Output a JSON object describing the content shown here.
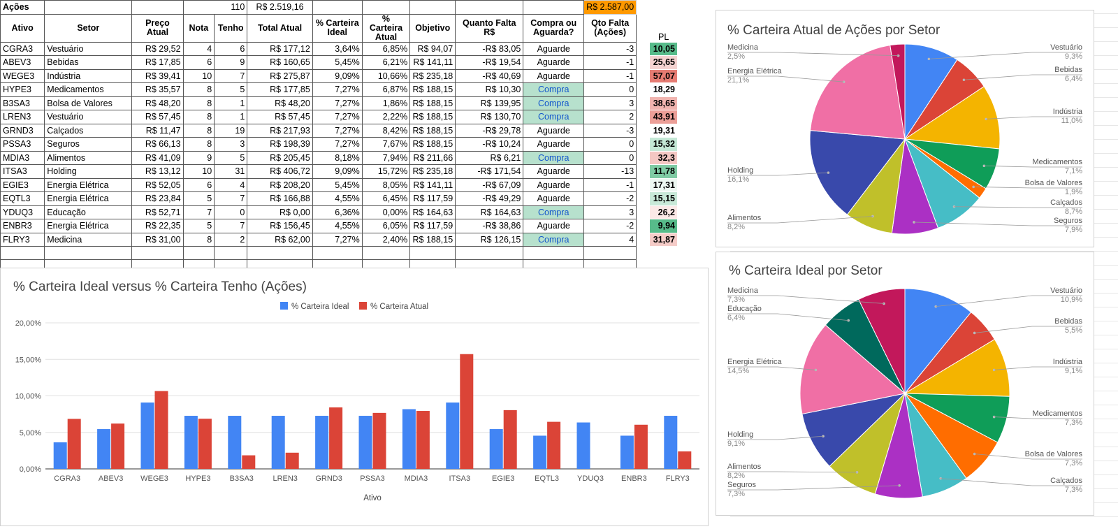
{
  "sheet": {
    "summary": {
      "label": "Ações",
      "nota_total": "110",
      "total_atual": "R$ 2.519,16",
      "falta_total": "R$ 2.587,00"
    },
    "headers": [
      "Ativo",
      "Setor",
      "Preço Atual",
      "Nota",
      "Tenho",
      "Total Atual",
      "% Carteira Ideal",
      "% Carteira Atual",
      "Objetivo",
      "Quanto Falta R$",
      "Compra ou Aguarda?",
      "Qto Falta (Ações)",
      "PL"
    ],
    "rows": [
      {
        "ativo": "CGRA3",
        "setor": "Vestuário",
        "preco": "R$ 29,52",
        "nota": "4",
        "tenho": "6",
        "total": "R$ 177,12",
        "ideal": "3,64%",
        "atual": "6,85%",
        "objetivo": "R$ 94,07",
        "falta": "-R$ 83,05",
        "acao": "Aguarde",
        "qto": "-3",
        "pl": "10,05",
        "pl_color": "#57bb8a"
      },
      {
        "ativo": "ABEV3",
        "setor": "Bebidas",
        "preco": "R$ 17,85",
        "nota": "6",
        "tenho": "9",
        "total": "R$ 160,65",
        "ideal": "5,45%",
        "atual": "6,21%",
        "objetivo": "R$ 141,11",
        "falta": "-R$ 19,54",
        "acao": "Aguarde",
        "qto": "-1",
        "pl": "25,65",
        "pl_color": "#f4d3d1"
      },
      {
        "ativo": "WEGE3",
        "setor": "Indústria",
        "preco": "R$ 39,41",
        "nota": "10",
        "tenho": "7",
        "total": "R$ 275,87",
        "ideal": "9,09%",
        "atual": "10,66%",
        "objetivo": "R$ 235,18",
        "falta": "-R$ 40,69",
        "acao": "Aguarde",
        "qto": "-1",
        "pl": "57,07",
        "pl_color": "#e67c73"
      },
      {
        "ativo": "HYPE3",
        "setor": "Medicamentos",
        "preco": "R$ 35,57",
        "nota": "8",
        "tenho": "5",
        "total": "R$ 177,85",
        "ideal": "7,27%",
        "atual": "6,87%",
        "objetivo": "R$ 188,15",
        "falta": "R$ 10,30",
        "acao": "Compra",
        "qto": "0",
        "pl": "18,29",
        "pl_color": "#ffffff"
      },
      {
        "ativo": "B3SA3",
        "setor": "Bolsa de Valores",
        "preco": "R$ 48,20",
        "nota": "8",
        "tenho": "1",
        "total": "R$ 48,20",
        "ideal": "7,27%",
        "atual": "1,86%",
        "objetivo": "R$ 188,15",
        "falta": "R$ 139,95",
        "acao": "Compra",
        "qto": "3",
        "pl": "38,65",
        "pl_color": "#f0b4af"
      },
      {
        "ativo": "LREN3",
        "setor": "Vestuário",
        "preco": "R$ 57,45",
        "nota": "8",
        "tenho": "1",
        "total": "R$ 57,45",
        "ideal": "7,27%",
        "atual": "2,22%",
        "objetivo": "R$ 188,15",
        "falta": "R$ 130,70",
        "acao": "Compra",
        "qto": "2",
        "pl": "43,91",
        "pl_color": "#ec9f98"
      },
      {
        "ativo": "GRND3",
        "setor": "Calçados",
        "preco": "R$ 11,47",
        "nota": "8",
        "tenho": "19",
        "total": "R$ 217,93",
        "ideal": "7,27%",
        "atual": "8,42%",
        "objetivo": "R$ 188,15",
        "falta": "-R$ 29,78",
        "acao": "Aguarde",
        "qto": "-3",
        "pl": "19,31",
        "pl_color": "#ffffff"
      },
      {
        "ativo": "PSSA3",
        "setor": "Seguros",
        "preco": "R$ 66,13",
        "nota": "8",
        "tenho": "3",
        "total": "R$ 198,39",
        "ideal": "7,27%",
        "atual": "7,67%",
        "objetivo": "R$ 188,15",
        "falta": "-R$ 10,24",
        "acao": "Aguarde",
        "qto": "0",
        "pl": "15,32",
        "pl_color": "#c5e8d6"
      },
      {
        "ativo": "MDIA3",
        "setor": "Alimentos",
        "preco": "R$ 41,09",
        "nota": "9",
        "tenho": "5",
        "total": "R$ 205,45",
        "ideal": "8,18%",
        "atual": "7,94%",
        "objetivo": "R$ 211,66",
        "falta": "R$ 6,21",
        "acao": "Compra",
        "qto": "0",
        "pl": "32,3",
        "pl_color": "#f4c7c3"
      },
      {
        "ativo": "ITSA3",
        "setor": "Holding",
        "preco": "R$ 13,12",
        "nota": "10",
        "tenho": "31",
        "total": "R$ 406,72",
        "ideal": "9,09%",
        "atual": "15,72%",
        "objetivo": "R$ 235,18",
        "falta": "-R$ 171,54",
        "acao": "Aguarde",
        "qto": "-13",
        "pl": "11,78",
        "pl_color": "#7fcba4"
      },
      {
        "ativo": "EGIE3",
        "setor": "Energia Elétrica",
        "preco": "R$ 52,05",
        "nota": "6",
        "tenho": "4",
        "total": "R$ 208,20",
        "ideal": "5,45%",
        "atual": "8,05%",
        "objetivo": "R$ 141,11",
        "falta": "-R$ 67,09",
        "acao": "Aguarde",
        "qto": "-1",
        "pl": "17,31",
        "pl_color": "#edf8f2"
      },
      {
        "ativo": "EQTL3",
        "setor": "Energia Elétrica",
        "preco": "R$ 23,84",
        "nota": "5",
        "tenho": "7",
        "total": "R$ 166,88",
        "ideal": "4,55%",
        "atual": "6,45%",
        "objetivo": "R$ 117,59",
        "falta": "-R$ 49,29",
        "acao": "Aguarde",
        "qto": "-2",
        "pl": "15,15",
        "pl_color": "#c8e9d8"
      },
      {
        "ativo": "YDUQ3",
        "setor": "Educação",
        "preco": "R$ 52,71",
        "nota": "7",
        "tenho": "0",
        "total": "R$ 0,00",
        "ideal": "6,36%",
        "atual": "0,00%",
        "objetivo": "R$ 164,63",
        "falta": "R$ 164,63",
        "acao": "Compra",
        "qto": "3",
        "pl": "26,2",
        "pl_color": "#fbe9e7"
      },
      {
        "ativo": "ENBR3",
        "setor": "Energia Elétrica",
        "preco": "R$ 22,35",
        "nota": "5",
        "tenho": "7",
        "total": "R$ 156,45",
        "ideal": "4,55%",
        "atual": "6,05%",
        "objetivo": "R$ 117,59",
        "falta": "-R$ 38,86",
        "acao": "Aguarde",
        "qto": "-2",
        "pl": "9,94",
        "pl_color": "#57bb8a"
      },
      {
        "ativo": "FLRY3",
        "setor": "Medicina",
        "preco": "R$ 31,00",
        "nota": "8",
        "tenho": "2",
        "total": "R$ 62,00",
        "ideal": "7,27%",
        "atual": "2,40%",
        "objetivo": "R$ 188,15",
        "falta": "R$ 126,15",
        "acao": "Compra",
        "qto": "4",
        "pl": "31,87",
        "pl_color": "#f5ccc8"
      }
    ]
  },
  "chart_data": [
    {
      "type": "bar",
      "title": "% Carteira Ideal versus % Carteira Tenho (Ações)",
      "xlabel": "Ativo",
      "ylabel": "",
      "ylim": [
        0,
        20
      ],
      "yticks": [
        "0,00%",
        "5,00%",
        "10,00%",
        "15,00%",
        "20,00%"
      ],
      "legend_position": "top",
      "categories": [
        "CGRA3",
        "ABEV3",
        "WEGE3",
        "HYPE3",
        "B3SA3",
        "LREN3",
        "GRND3",
        "PSSA3",
        "MDIA3",
        "ITSA3",
        "EGIE3",
        "EQTL3",
        "YDUQ3",
        "ENBR3",
        "FLRY3"
      ],
      "series": [
        {
          "name": "% Carteira Ideal",
          "color": "#4285f4",
          "values": [
            3.64,
            5.45,
            9.09,
            7.27,
            7.27,
            7.27,
            7.27,
            7.27,
            8.18,
            9.09,
            5.45,
            4.55,
            6.36,
            4.55,
            7.27
          ]
        },
        {
          "name": "% Carteira Atual",
          "color": "#db4437",
          "values": [
            6.85,
            6.21,
            10.66,
            6.87,
            1.86,
            2.22,
            8.42,
            7.67,
            7.94,
            15.72,
            8.05,
            6.45,
            0.0,
            6.05,
            2.4
          ]
        }
      ],
      "grid": true
    },
    {
      "type": "pie",
      "title": "% Carteira Atual de Ações por Setor",
      "slices": [
        {
          "label": "Vestuário",
          "value": 9.3,
          "pct": "9,3%",
          "color": "#4285f4"
        },
        {
          "label": "Bebidas",
          "value": 6.4,
          "pct": "6,4%",
          "color": "#db4437"
        },
        {
          "label": "Indústria",
          "value": 11.0,
          "pct": "11,0%",
          "color": "#f4b400"
        },
        {
          "label": "Medicamentos",
          "value": 7.1,
          "pct": "7,1%",
          "color": "#0f9d58"
        },
        {
          "label": "Bolsa de Valores",
          "value": 1.9,
          "pct": "1,9%",
          "color": "#ff6d00"
        },
        {
          "label": "Calçados",
          "value": 8.7,
          "pct": "8,7%",
          "color": "#46bdc6"
        },
        {
          "label": "Seguros",
          "value": 7.9,
          "pct": "7,9%",
          "color": "#ab30c4"
        },
        {
          "label": "Alimentos",
          "value": 8.2,
          "pct": "8,2%",
          "color": "#c0c02a"
        },
        {
          "label": "Holding",
          "value": 16.1,
          "pct": "16,1%",
          "color": "#3949ab"
        },
        {
          "label": "Energia Elétrica",
          "value": 21.1,
          "pct": "21,1%",
          "color": "#f06fa5"
        },
        {
          "label": "Medicina",
          "value": 2.5,
          "pct": "2,5%",
          "color": "#c2185b"
        }
      ]
    },
    {
      "type": "pie",
      "title": "% Carteira Ideal por Setor",
      "slices": [
        {
          "label": "Vestuário",
          "value": 10.9,
          "pct": "10,9%",
          "color": "#4285f4"
        },
        {
          "label": "Bebidas",
          "value": 5.5,
          "pct": "5,5%",
          "color": "#db4437"
        },
        {
          "label": "Indústria",
          "value": 9.1,
          "pct": "9,1%",
          "color": "#f4b400"
        },
        {
          "label": "Medicamentos",
          "value": 7.3,
          "pct": "7,3%",
          "color": "#0f9d58"
        },
        {
          "label": "Bolsa de Valores",
          "value": 7.3,
          "pct": "7,3%",
          "color": "#ff6d00"
        },
        {
          "label": "Calçados",
          "value": 7.3,
          "pct": "7,3%",
          "color": "#46bdc6"
        },
        {
          "label": "Seguros",
          "value": 7.3,
          "pct": "7,3%",
          "color": "#ab30c4"
        },
        {
          "label": "Alimentos",
          "value": 8.2,
          "pct": "8,2%",
          "color": "#c0c02a"
        },
        {
          "label": "Holding",
          "value": 9.1,
          "pct": "9,1%",
          "color": "#3949ab"
        },
        {
          "label": "Energia Elétrica",
          "value": 14.5,
          "pct": "14,5%",
          "color": "#f06fa5"
        },
        {
          "label": "Educação",
          "value": 6.4,
          "pct": "6,4%",
          "color": "#00695c"
        },
        {
          "label": "Medicina",
          "value": 7.3,
          "pct": "7,3%",
          "color": "#c2185b"
        }
      ]
    }
  ]
}
